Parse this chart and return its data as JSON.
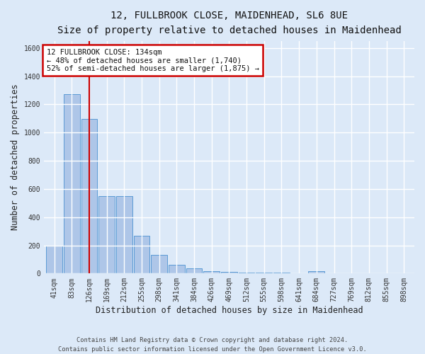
{
  "title_line1": "12, FULLBROOK CLOSE, MAIDENHEAD, SL6 8UE",
  "title_line2": "Size of property relative to detached houses in Maidenhead",
  "xlabel": "Distribution of detached houses by size in Maidenhead",
  "ylabel": "Number of detached properties",
  "footer": "Contains HM Land Registry data © Crown copyright and database right 2024.\nContains public sector information licensed under the Open Government Licence v3.0.",
  "bin_labels": [
    "41sqm",
    "83sqm",
    "126sqm",
    "169sqm",
    "212sqm",
    "255sqm",
    "298sqm",
    "341sqm",
    "384sqm",
    "426sqm",
    "469sqm",
    "512sqm",
    "555sqm",
    "598sqm",
    "641sqm",
    "684sqm",
    "727sqm",
    "769sqm",
    "812sqm",
    "855sqm",
    "898sqm"
  ],
  "bar_values": [
    195,
    1270,
    1095,
    548,
    550,
    268,
    130,
    62,
    35,
    18,
    14,
    8,
    5,
    5,
    0,
    18,
    0,
    0,
    0,
    0,
    0
  ],
  "bar_color": "#aec6e8",
  "bar_edge_color": "#5b9bd5",
  "ylim": [
    0,
    1650
  ],
  "yticks": [
    0,
    200,
    400,
    600,
    800,
    1000,
    1200,
    1400,
    1600
  ],
  "vline_x": 2,
  "annotation_line1": "12 FULLBROOK CLOSE: 134sqm",
  "annotation_line2": "← 48% of detached houses are smaller (1,740)",
  "annotation_line3": "52% of semi-detached houses are larger (1,875) →",
  "annotation_box_color": "#ffffff",
  "annotation_box_edge": "#cc0000",
  "vline_color": "#cc0000",
  "bg_color": "#dce9f8",
  "plot_bg": "#dce9f8",
  "grid_color": "#ffffff",
  "title_fontsize": 10,
  "subtitle_fontsize": 9,
  "axis_label_fontsize": 8.5,
  "tick_fontsize": 7,
  "annot_fontsize": 7.5
}
